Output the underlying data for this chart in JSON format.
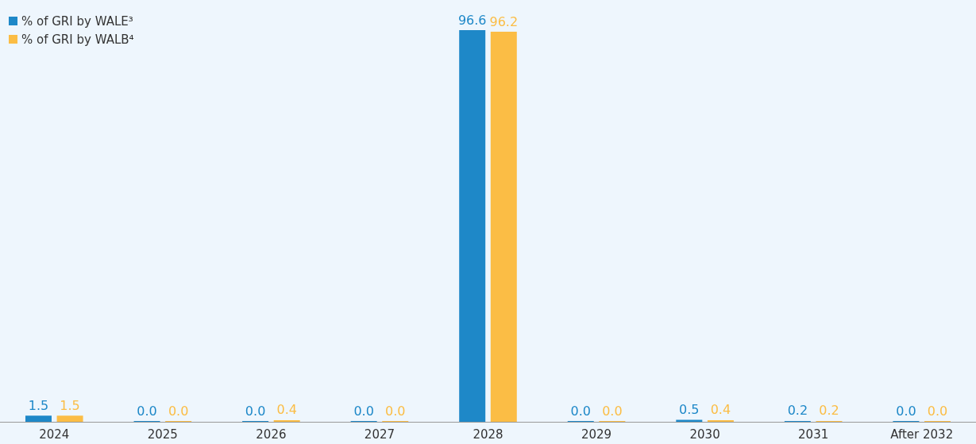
{
  "chart_data": {
    "type": "bar",
    "categories": [
      "2024",
      "2025",
      "2026",
      "2027",
      "2028",
      "2029",
      "2030",
      "2031",
      "After 2032"
    ],
    "series": [
      {
        "name": "% of GRI by WALE³",
        "color": "#1e88c8",
        "values": [
          1.5,
          0.0,
          0.0,
          0.0,
          96.6,
          0.0,
          0.5,
          0.2,
          0.0
        ],
        "value_labels": [
          "1.5",
          "0.0",
          "0.0",
          "0.0",
          "96.6",
          "0.0",
          "0.5",
          "0.2",
          "0.0"
        ]
      },
      {
        "name": "% of GRI by WALB⁴",
        "color": "#fbbd45",
        "values": [
          1.5,
          0.0,
          0.4,
          0.0,
          96.2,
          0.0,
          0.4,
          0.2,
          0.0
        ],
        "value_labels": [
          "1.5",
          "0.0",
          "0.4",
          "0.0",
          "96.2",
          "0.0",
          "0.4",
          "0.2",
          "0.0"
        ]
      }
    ],
    "legend": "top left"
  }
}
